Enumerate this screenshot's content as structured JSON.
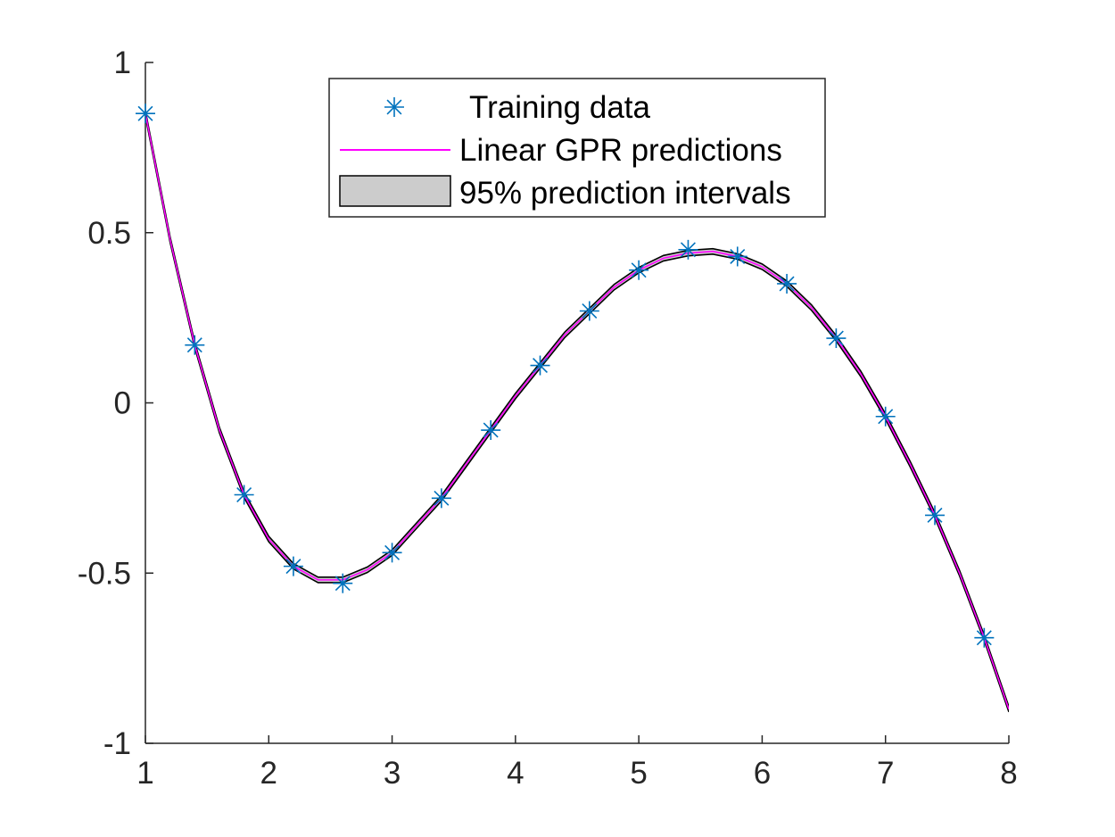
{
  "chart_data": {
    "type": "line",
    "xlim": [
      1,
      8
    ],
    "ylim": [
      -1,
      1
    ],
    "x_ticks": [
      1,
      2,
      3,
      4,
      5,
      6,
      7,
      8
    ],
    "y_ticks": [
      1,
      0.5,
      0,
      -0.5,
      -1
    ],
    "x_tick_labels": [
      "1",
      "2",
      "3",
      "4",
      "5",
      "6",
      "7",
      "8"
    ],
    "y_tick_labels": [
      "1",
      "0.5",
      "0",
      "-0.5",
      "-1"
    ],
    "grid": false,
    "legend_position": "top-center",
    "colors": {
      "training": "#0072BD",
      "prediction": "#FF00FF",
      "interval_fill": "#CCCCCC",
      "interval_edge": "#000000",
      "axis": "#262626"
    },
    "series": [
      {
        "name": "Training data",
        "kind": "scatter",
        "marker": "asterisk",
        "x": [
          1.0,
          1.4,
          1.8,
          2.2,
          2.6,
          3.0,
          3.4,
          3.8,
          4.2,
          4.6,
          5.0,
          5.4,
          5.8,
          6.2,
          6.6,
          7.0,
          7.4,
          7.8
        ],
        "y": [
          0.85,
          0.17,
          -0.27,
          -0.48,
          -0.53,
          -0.44,
          -0.28,
          -0.08,
          0.11,
          0.27,
          0.39,
          0.45,
          0.43,
          0.35,
          0.19,
          -0.04,
          -0.33,
          -0.69
        ]
      },
      {
        "name": "Linear GPR predictions",
        "kind": "line",
        "x": [
          1.0,
          1.2,
          1.4,
          1.6,
          1.8,
          2.0,
          2.2,
          2.4,
          2.6,
          2.8,
          3.0,
          3.2,
          3.4,
          3.6,
          3.8,
          4.0,
          4.2,
          4.4,
          4.6,
          4.8,
          5.0,
          5.2,
          5.4,
          5.6,
          5.8,
          6.0,
          6.2,
          6.4,
          6.6,
          6.8,
          7.0,
          7.2,
          7.4,
          7.6,
          7.8,
          8.0
        ],
        "y": [
          0.85,
          0.48,
          0.17,
          -0.08,
          -0.27,
          -0.4,
          -0.48,
          -0.52,
          -0.52,
          -0.49,
          -0.44,
          -0.36,
          -0.28,
          -0.18,
          -0.08,
          0.02,
          0.11,
          0.2,
          0.27,
          0.34,
          0.39,
          0.425,
          0.44,
          0.445,
          0.43,
          0.4,
          0.35,
          0.28,
          0.19,
          0.085,
          -0.04,
          -0.18,
          -0.33,
          -0.5,
          -0.69,
          -0.9
        ]
      },
      {
        "name": "95% prediction intervals",
        "kind": "band",
        "half_width": 0.008
      }
    ]
  }
}
